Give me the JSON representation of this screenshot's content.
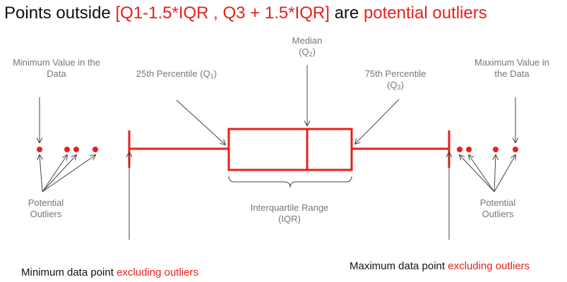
{
  "title": {
    "prefix": "Points outside ",
    "range": "[Q1-1.5*IQR ,  Q3 + 1.5*IQR]",
    "mid": " are ",
    "suffix": "potential outliers"
  },
  "labels": {
    "min_value": [
      "Minimum Value in the",
      "Data"
    ],
    "max_value": [
      "Maximum Value in",
      "the Data"
    ],
    "p25": {
      "text": "25th Percentile (Q",
      "sub": "1",
      "close": ")"
    },
    "median": {
      "line1": "Median",
      "q": "(Q",
      "sub": "2",
      "close": ")"
    },
    "p75": {
      "line1": "75th Percentile",
      "q": "(Q",
      "sub": "3",
      "close": ")"
    },
    "outliers_left": [
      "Potential",
      "Outliers"
    ],
    "outliers_right": [
      "Potential",
      "Outliers"
    ],
    "iqr": [
      "Interquartile Range",
      "(IQR)"
    ]
  },
  "footer": {
    "min_prefix": "Minimum data point ",
    "min_suffix": "excluding outliers",
    "max_prefix": "Maximum data point ",
    "max_suffix": "excluding outliers"
  },
  "colors": {
    "accent": "#e8201a",
    "label": "#777777",
    "arrow": "#444444"
  }
}
